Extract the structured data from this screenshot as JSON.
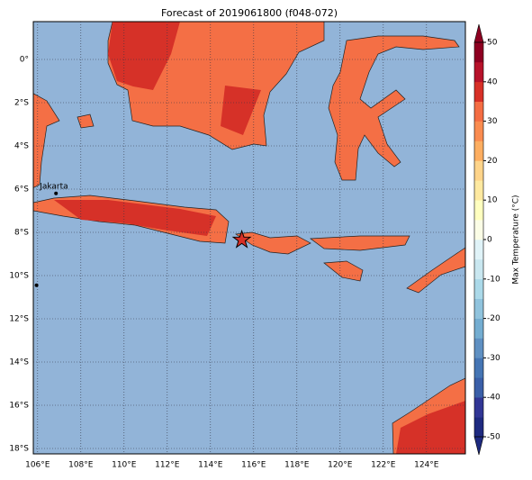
{
  "chart_data": {
    "type": "map",
    "title": "Forecast of 2019061800 (f048-072)",
    "xlim": [
      105.8,
      125.8
    ],
    "ylim": [
      -18.25,
      1.75
    ],
    "xticks": [
      {
        "value": 106,
        "label": "106°E"
      },
      {
        "value": 108,
        "label": "108°E"
      },
      {
        "value": 110,
        "label": "110°E"
      },
      {
        "value": 112,
        "label": "112°E"
      },
      {
        "value": 114,
        "label": "114°E"
      },
      {
        "value": 116,
        "label": "116°E"
      },
      {
        "value": 118,
        "label": "118°E"
      },
      {
        "value": 120,
        "label": "120°E"
      },
      {
        "value": 122,
        "label": "122°E"
      },
      {
        "value": 124,
        "label": "124°E"
      }
    ],
    "yticks": [
      {
        "value": 0,
        "label": "0°"
      },
      {
        "value": -2,
        "label": "2°S"
      },
      {
        "value": -4,
        "label": "4°S"
      },
      {
        "value": -6,
        "label": "6°S"
      },
      {
        "value": -8,
        "label": "8°S"
      },
      {
        "value": -10,
        "label": "10°S"
      },
      {
        "value": -12,
        "label": "12°S"
      },
      {
        "value": -14,
        "label": "14°S"
      },
      {
        "value": -16,
        "label": "16°S"
      },
      {
        "value": -18,
        "label": "18°S"
      }
    ],
    "grid": true,
    "markers": [
      {
        "label": "Jakarta",
        "lon": 106.85,
        "lat": -6.2,
        "shape": "dot"
      },
      {
        "lon": 115.45,
        "lat": -8.35,
        "shape": "star"
      },
      {
        "lon": 105.95,
        "lat": -10.45,
        "shape": "dot"
      }
    ],
    "colorbar": {
      "label": "Max Temperature (°C)",
      "lim": [
        -50,
        50
      ],
      "ticks": [
        -50,
        -40,
        -30,
        -20,
        -10,
        0,
        10,
        20,
        30,
        40,
        50
      ],
      "colors": [
        "#1e2a80",
        "#313695",
        "#3a5fa8",
        "#4575b4",
        "#5f90c2",
        "#74add1",
        "#90c3dd",
        "#abd9e9",
        "#c9e7f0",
        "#e0f3f8",
        "#fbfde6",
        "#ffffbf",
        "#fee9a0",
        "#fed48a",
        "#fdae61",
        "#fa8c50",
        "#f46d43",
        "#d73027",
        "#b7122a",
        "#8e0021"
      ]
    }
  }
}
